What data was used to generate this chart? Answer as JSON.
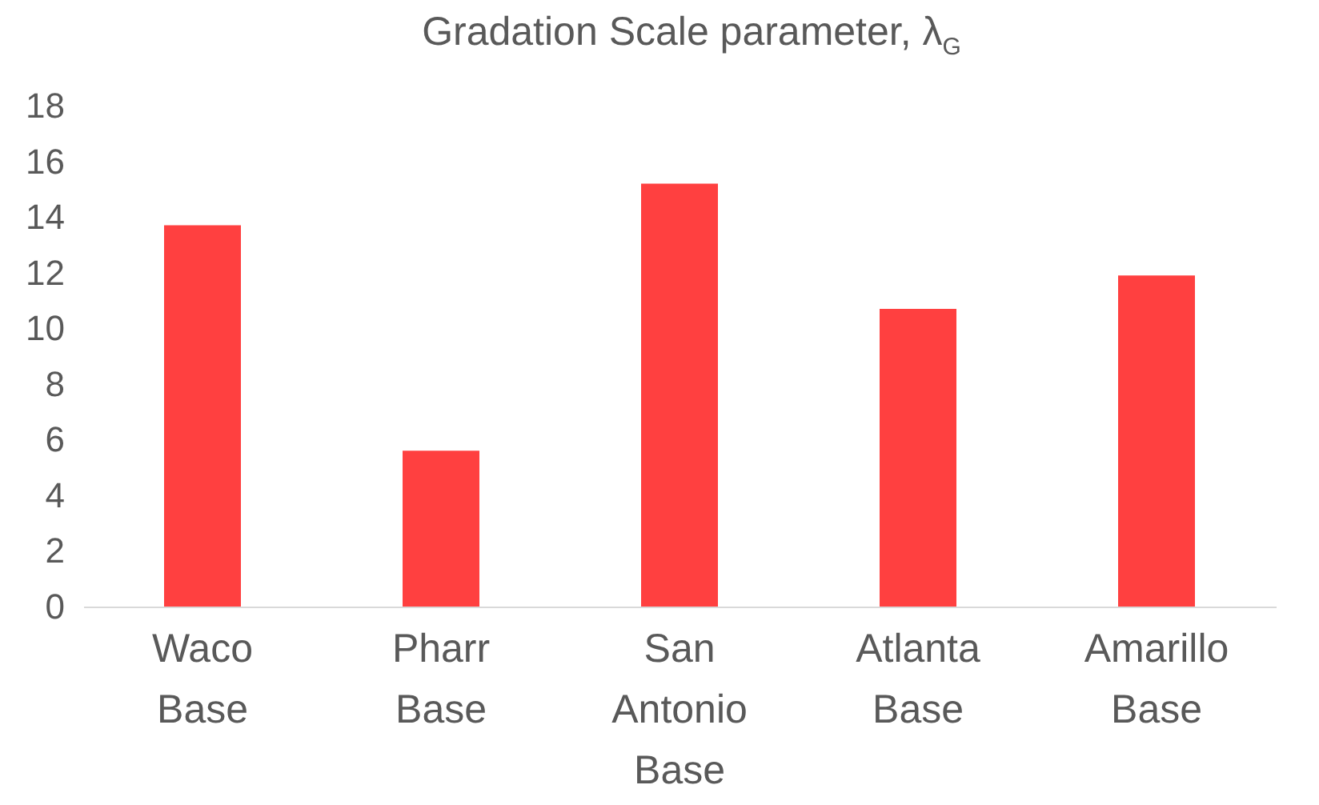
{
  "chart_data": {
    "type": "bar",
    "title": "Gradation Scale parameter, λ$_{G}$",
    "categories": [
      "Waco Base",
      "Pharr Base",
      "San Antonio Base",
      "Atlanta Base",
      "Amarillo Base"
    ],
    "values": [
      13.7,
      5.6,
      15.2,
      10.7,
      11.9
    ],
    "color": "#ff4040",
    "ylim": [
      0,
      18
    ],
    "yticks": [
      0,
      2,
      4,
      6,
      8,
      10,
      12,
      14,
      16,
      18
    ],
    "grid": false
  }
}
